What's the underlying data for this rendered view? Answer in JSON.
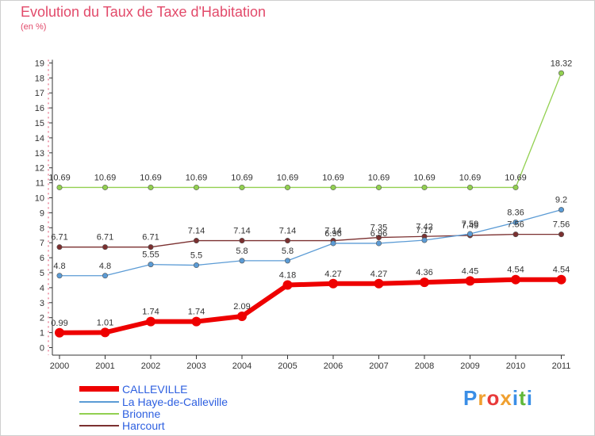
{
  "chart_data": {
    "type": "line",
    "title": "Evolution du Taux de Taxe d'Habitation",
    "ylabel": "(en %)",
    "xlabel": "",
    "ylim": [
      0,
      19
    ],
    "yticks": [
      0,
      1,
      2,
      3,
      4,
      5,
      6,
      7,
      8,
      9,
      10,
      11,
      12,
      13,
      14,
      15,
      16,
      17,
      18,
      19
    ],
    "categories": [
      "2000",
      "2001",
      "2002",
      "2003",
      "2004",
      "2005",
      "2006",
      "2007",
      "2008",
      "2009",
      "2010",
      "2011"
    ],
    "series": [
      {
        "name": "CALLEVILLE",
        "color": "#ee0000",
        "values": [
          0.99,
          1.01,
          1.74,
          1.74,
          2.09,
          4.18,
          4.27,
          4.27,
          4.36,
          4.45,
          4.54,
          4.54
        ],
        "labels": [
          "0.99",
          "1.01",
          "1.74",
          "1.74",
          "2.09",
          "4.18",
          "4.27",
          "4.27",
          "4.36",
          "4.45",
          "4.54",
          "4.54"
        ]
      },
      {
        "name": "La Haye-de-Calleville",
        "color": "#5b9bd5",
        "values": [
          4.8,
          4.8,
          5.55,
          5.5,
          5.8,
          5.8,
          6.96,
          6.96,
          7.17,
          7.59,
          8.36,
          9.2
        ],
        "labels": [
          "4.8",
          "4.8",
          "5.55",
          "5.5",
          "5.8",
          "5.8",
          "6.96",
          "6.96",
          "7.17",
          "7.59",
          "8.36",
          "9.2"
        ]
      },
      {
        "name": "Brionne",
        "color": "#92d050",
        "values": [
          10.69,
          10.69,
          10.69,
          10.69,
          10.69,
          10.69,
          10.69,
          10.69,
          10.69,
          10.69,
          10.69,
          18.32
        ],
        "labels": [
          "10.69",
          "10.69",
          "10.69",
          "10.69",
          "10.69",
          "10.69",
          "10.69",
          "10.69",
          "10.69",
          "10.69",
          "10.69",
          "18.32"
        ]
      },
      {
        "name": "Harcourt",
        "color": "#7b3030",
        "values": [
          6.71,
          6.71,
          6.71,
          7.14,
          7.14,
          7.14,
          7.14,
          7.35,
          7.42,
          7.49,
          7.56,
          7.56
        ],
        "labels": [
          "6.71",
          "6.71",
          "6.71",
          "7.14",
          "7.14",
          "7.14",
          "7.14",
          "7.35",
          "7.42",
          "7.49",
          "7.56",
          "7.56"
        ]
      }
    ],
    "legend": "bottom-left",
    "grid": false
  },
  "logo": {
    "text": "Proxiti",
    "letters": [
      "P",
      "r",
      "o",
      "x",
      "i",
      "t",
      "i"
    ],
    "colors": [
      "#3a8ee6",
      "#f0a030",
      "#e83a3a",
      "#f0a030",
      "#3a8ee6",
      "#60b83a",
      "#3a8ee6"
    ]
  }
}
